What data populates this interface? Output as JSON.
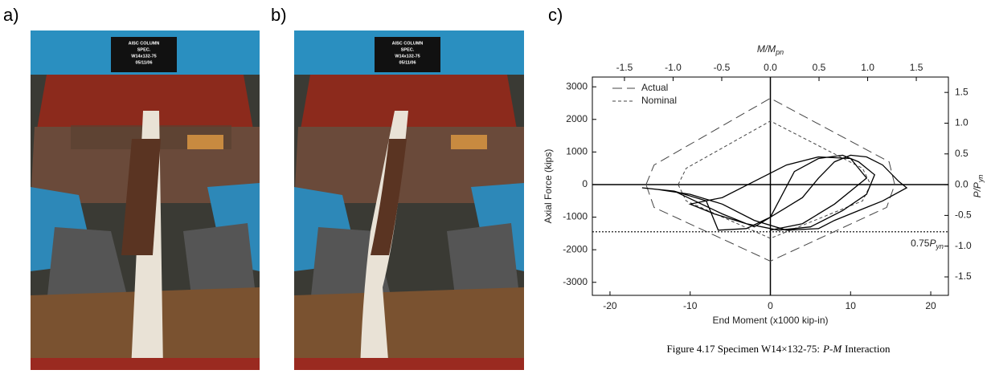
{
  "panels": {
    "a": {
      "label": "a)",
      "sign": [
        "AISC COLUMN",
        "SPEC.",
        "W14x132-75",
        "05/11/06"
      ]
    },
    "b": {
      "label": "b)",
      "sign": [
        "AISC COLUMN",
        "SPEC.",
        "W14x132-75",
        "05/11/06"
      ]
    },
    "c": {
      "label": "c)"
    }
  },
  "chart_data": {
    "type": "line",
    "xlabel": "End Moment (x1000 kip-in)",
    "ylabel": "Axial Force (kips)",
    "x2label_parts": [
      "M/M",
      "pn"
    ],
    "y2label_parts": [
      "P/P",
      "yn"
    ],
    "caption_parts": [
      "Figure 4.17 Specimen W14×132-75:",
      "P-M",
      "Interaction"
    ],
    "xlim": [
      -22.2,
      22.2
    ],
    "ylim": [
      -3400,
      3300
    ],
    "xticks": [
      -20,
      -10,
      0,
      10,
      20
    ],
    "yticks": [
      -3000,
      -2000,
      -1000,
      0,
      1000,
      2000,
      3000
    ],
    "x2lim": [
      -1.83,
      1.83
    ],
    "x2ticks": [
      -1.5,
      {
        "value": -1,
        "label": "-1.0"
      },
      -0.5,
      {
        "value": 0,
        "label": "0.0"
      },
      0.5,
      {
        "value": 1,
        "label": "1.0"
      },
      1.5
    ],
    "y2lim": [
      -1.8,
      1.75
    ],
    "y2ticks": [
      -1.5,
      {
        "value": -1,
        "label": "-1.0"
      },
      -0.5,
      {
        "value": 0,
        "label": "0.0"
      },
      0.5,
      {
        "value": 1,
        "label": "1.0"
      },
      1.5
    ],
    "legend": "top-left",
    "reference_line": {
      "y": -1450,
      "label_parts": [
        "0.75",
        "P",
        "yn"
      ]
    },
    "series": [
      {
        "name": "Actual",
        "color": "#444444",
        "dash": "long",
        "x": [
          -15.5,
          -14.5,
          0,
          14.8,
          15.5,
          14.5,
          0,
          -14.5,
          -15.5
        ],
        "values": [
          0,
          600,
          2650,
          700,
          0,
          -700,
          -2350,
          -700,
          0
        ]
      },
      {
        "name": "Nominal",
        "color": "#444444",
        "dash": "short",
        "x": [
          -11.5,
          -10.5,
          0,
          11.5,
          12.5,
          11.5,
          0,
          -10.5,
          -11.5
        ],
        "values": [
          0,
          500,
          1950,
          500,
          0,
          -500,
          -1650,
          -500,
          0
        ]
      },
      {
        "color": "#000000",
        "dash": "solid",
        "x": [
          -16,
          -12,
          -8,
          -6.5,
          -3,
          0,
          2,
          4,
          6,
          8,
          10,
          12,
          14,
          16,
          17,
          14,
          12,
          8,
          6,
          2,
          -2,
          -6,
          -10,
          -14,
          -16,
          -12,
          -6,
          -2,
          0,
          3,
          6,
          9,
          11,
          13,
          12,
          9,
          5,
          1,
          -3,
          -7,
          -10,
          -6,
          -2,
          2,
          6,
          10,
          12,
          8,
          4,
          0
        ],
        "values": [
          -100,
          -200,
          -500,
          -1400,
          -1350,
          -1000,
          -700,
          -400,
          200,
          700,
          900,
          850,
          600,
          100,
          -100,
          -500,
          -700,
          -1100,
          -1350,
          -1400,
          -1100,
          -600,
          -300,
          -150,
          -100,
          -200,
          -900,
          -1300,
          -1000,
          400,
          800,
          900,
          700,
          300,
          -300,
          -800,
          -1300,
          -1400,
          -1200,
          -900,
          -600,
          -400,
          100,
          600,
          850,
          800,
          200,
          -600,
          -1200,
          -1400
        ]
      }
    ]
  }
}
